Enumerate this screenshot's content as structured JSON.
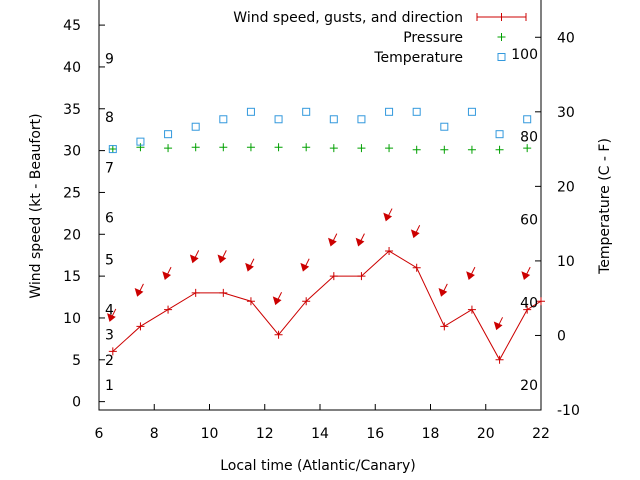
{
  "chart_data": {
    "type": "line",
    "xlabel": "Local time (Atlantic/Canary)",
    "ylabel_left": "Wind speed (kt - Beaufort)",
    "ylabel_right": "Temperature (C - F)",
    "xlim": [
      6,
      22
    ],
    "ylim_left": [
      -1,
      48
    ],
    "ylim_right": [
      -10,
      45
    ],
    "x_ticks": [
      6,
      8,
      10,
      12,
      14,
      16,
      18,
      20,
      22
    ],
    "y_ticks_left": [
      0,
      5,
      10,
      15,
      20,
      25,
      30,
      35,
      40,
      45
    ],
    "y_ticks_right": [
      -10,
      0,
      10,
      20,
      30,
      40
    ],
    "beaufort_scale": [
      {
        "label": "1",
        "kt": 2
      },
      {
        "label": "2",
        "kt": 5
      },
      {
        "label": "3",
        "kt": 8
      },
      {
        "label": "4",
        "kt": 11
      },
      {
        "label": "5",
        "kt": 17
      },
      {
        "label": "6",
        "kt": 22
      },
      {
        "label": "7",
        "kt": 28
      },
      {
        "label": "8",
        "kt": 34
      },
      {
        "label": "9",
        "kt": 41
      }
    ],
    "fahrenheit_scale": [
      {
        "label": "20",
        "f": 20
      },
      {
        "label": "40",
        "f": 40
      },
      {
        "label": "60",
        "f": 60
      },
      {
        "label": "80",
        "f": 80
      },
      {
        "label": "100",
        "f": 100
      }
    ],
    "legend": {
      "position": "top-right",
      "entries": [
        "Wind speed, gusts, and direction",
        "Pressure",
        "Temperature"
      ]
    },
    "series": [
      {
        "name": "Wind speed, gusts, and direction",
        "color": "#cc0000",
        "x": [
          6.5,
          7.5,
          8.5,
          9.5,
          10.5,
          11.5,
          12.5,
          13.5,
          14.5,
          15.5,
          16.5,
          17.5,
          18.5,
          19.5,
          20.5,
          21.5,
          22
        ],
        "y": [
          6,
          9,
          11,
          13,
          13,
          12,
          8,
          12,
          15,
          15,
          18,
          16,
          9,
          11,
          5,
          11,
          12
        ]
      },
      {
        "name": "Pressure",
        "color": "#00a000",
        "axis": "left",
        "x": [
          6.5,
          7.5,
          8.5,
          9.5,
          10.5,
          11.5,
          12.5,
          13.5,
          14.5,
          15.5,
          16.5,
          17.5,
          18.5,
          19.5,
          20.5,
          21.5
        ],
        "y": [
          30.2,
          30.4,
          30.3,
          30.4,
          30.4,
          30.4,
          30.4,
          30.4,
          30.3,
          30.3,
          30.3,
          30.1,
          30.1,
          30.1,
          30.1,
          30.3
        ]
      },
      {
        "name": "Temperature",
        "color": "#3399dd",
        "axis": "right",
        "x": [
          6.5,
          7.5,
          8.5,
          9.5,
          10.5,
          11.5,
          12.5,
          13.5,
          14.5,
          15.5,
          16.5,
          17.5,
          18.5,
          19.5,
          20.5,
          21.5
        ],
        "y": [
          25,
          26,
          27,
          28,
          29,
          30,
          29,
          30,
          29,
          29,
          30,
          30,
          28,
          30,
          27,
          29
        ]
      }
    ],
    "wind_direction_arrows": {
      "color": "#cc0000",
      "x": [
        6.5,
        7.5,
        8.5,
        9.5,
        10.5,
        11.5,
        12.5,
        13.5,
        14.5,
        15.5,
        16.5,
        17.5,
        18.5,
        19.5,
        20.5,
        21.5
      ],
      "y": [
        10,
        13,
        15,
        17,
        17,
        16,
        12,
        16,
        19,
        19,
        22,
        20,
        13,
        15,
        9,
        15
      ]
    }
  }
}
